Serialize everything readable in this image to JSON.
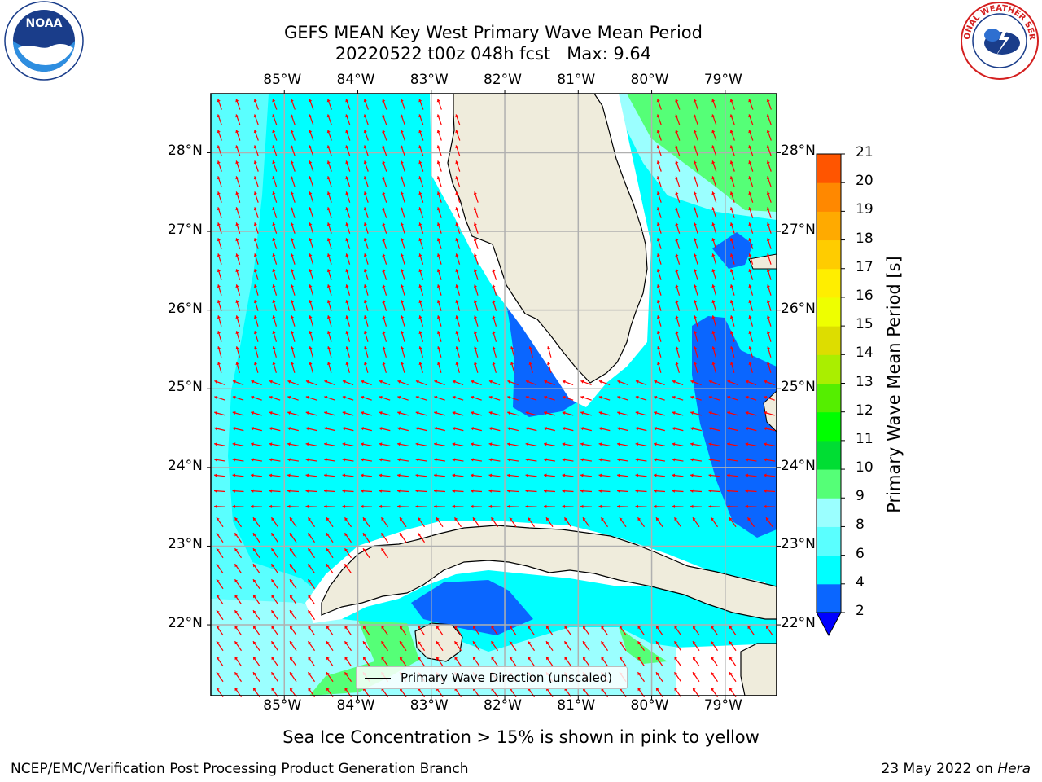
{
  "title": {
    "line1": "GEFS MEAN Key West Primary Wave Mean Period",
    "line2": "20220522 t00z 048h fcst   Max: 9.64"
  },
  "logos": {
    "noaa": {
      "name": "noaa-logo",
      "text": "NOAA",
      "ring_text": "NATIONAL OCEANIC AND ATMOSPHERIC ADMINISTRATION · U.S. DEPARTMENT OF COMMERCE"
    },
    "nws": {
      "name": "nws-logo",
      "ring_text": "NATIONAL WEATHER SERVICE"
    }
  },
  "map": {
    "lon_range": [
      -86.0,
      -78.3
    ],
    "lat_range": [
      21.1,
      28.75
    ],
    "lon_ticks": [
      "85°W",
      "84°W",
      "83°W",
      "82°W",
      "81°W",
      "80°W",
      "79°W"
    ],
    "lon_values": [
      -85,
      -84,
      -83,
      -82,
      -81,
      -80,
      -79
    ],
    "lat_ticks": [
      "28°N",
      "27°N",
      "26°N",
      "25°N",
      "24°N",
      "23°N",
      "22°N"
    ],
    "lat_values": [
      28,
      27,
      26,
      25,
      24,
      23,
      22
    ],
    "gridlines": true,
    "land_color": "#efecdc",
    "arrow_color": "#ff0000",
    "legend_label": "Primary Wave Direction (unscaled)",
    "period_regions": [
      {
        "range": "4-6",
        "color": "#00ffff",
        "where": "most of Gulf of Mexico and Florida Straits"
      },
      {
        "range": "6-8",
        "color": "#55ffff",
        "where": "far western Gulf and south of Cuba"
      },
      {
        "range": "8-9",
        "color": "#99ffff",
        "where": "south of Cuba, western edge, Atlantic near Florida"
      },
      {
        "range": "9-10",
        "color": "#55ff77",
        "where": "Atlantic NE corner, south of Cuba, Gulf of Batabano"
      },
      {
        "range": "2-4",
        "color": "#0077ff",
        "where": "Florida Bay, Great Bahama Bank, Gulf of Batabano"
      }
    ]
  },
  "colorbar": {
    "label": "Primary Wave Mean Period [s]",
    "ticks": [
      "2",
      "4",
      "6",
      "8",
      "9",
      "10",
      "11",
      "12",
      "13",
      "14",
      "15",
      "16",
      "17",
      "18",
      "19",
      "20",
      "21"
    ],
    "colors": [
      "#0a66ff",
      "#00ffff",
      "#5affff",
      "#9bffff",
      "#55ff77",
      "#00dd33",
      "#00ff00",
      "#55ee00",
      "#aaee00",
      "#dddd00",
      "#eeff00",
      "#ffee00",
      "#ffcc00",
      "#ffaa00",
      "#ff8800",
      "#ff5500",
      "#ff2200",
      "#ff0000"
    ],
    "under_color": "#0000ff"
  },
  "footer": {
    "note": "Sea Ice Concentration > 15% is shown in pink to yellow",
    "left": "NCEP/EMC/Verification Post Processing Product Generation Branch",
    "right_prefix": "23 May 2022 on ",
    "right_host": "Hera"
  }
}
